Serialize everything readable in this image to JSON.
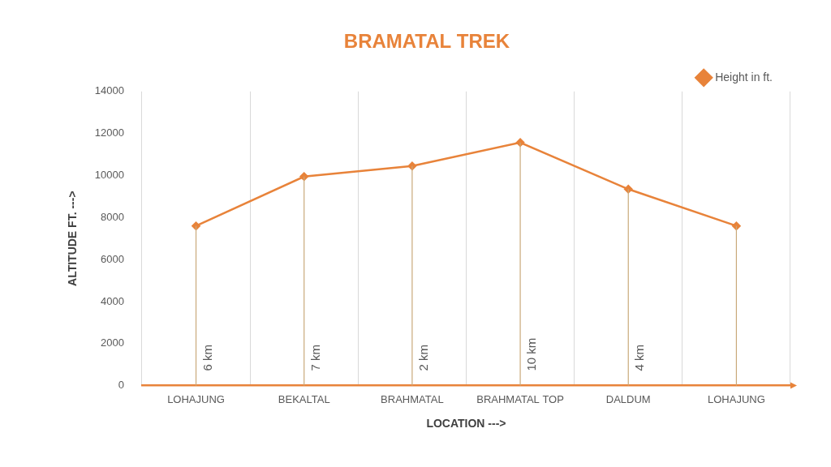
{
  "chart_data": {
    "type": "line",
    "title": "BRAMATAL TREK",
    "x_label": "LOCATION --->",
    "y_label": "ALTITUDE FT. --->",
    "categories": [
      "LOHAJUNG",
      "BEKALTAL",
      "BRAHMATAL",
      "BRAHMATAL TOP",
      "DALDUM",
      "LOHAJUNG"
    ],
    "series": [
      {
        "name": "Height in ft.",
        "color": "#e8833a",
        "marker": "diamond",
        "values": [
          7600,
          9950,
          10450,
          11570,
          9350,
          7600
        ]
      }
    ],
    "annotations": [
      "6 km",
      "7 km",
      "2 km",
      "10 km",
      "4 km",
      null
    ],
    "ylim": [
      0,
      14000
    ],
    "yticks": [
      0,
      2000,
      4000,
      6000,
      8000,
      10000,
      12000,
      14000
    ],
    "grid": true,
    "legend": "top-right"
  }
}
